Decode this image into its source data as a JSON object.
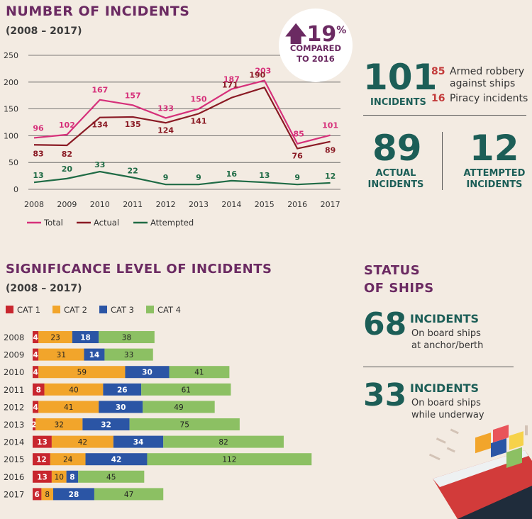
{
  "title1": "NUMBER OF INCIDENTS",
  "sub1": "(2008 – 2017)",
  "badge": {
    "value": "19",
    "unit": "%",
    "line1": "COMPARED",
    "line2": "TO 2016"
  },
  "summary": {
    "total_value": "101",
    "total_label": "INCIDENTS",
    "armed_value": "85",
    "armed_label1": "Armed robbery",
    "armed_label2": "against ships",
    "piracy_value": "16",
    "piracy_label": "Piracy incidents",
    "actual_value": "89",
    "actual_label1": "ACTUAL",
    "actual_label2": "INCIDENTS",
    "attempted_value": "12",
    "attempted_label1": "ATTEMPTED",
    "attempted_label2": "INCIDENTS"
  },
  "title2": "SIGNIFICANCE LEVEL OF INCIDENTS",
  "sub2": "(2008 – 2017)",
  "status": {
    "title1": "STATUS",
    "title2": "OF SHIPS",
    "anchor_value": "68",
    "anchor_label": "INCIDENTS",
    "anchor_desc1": "On board ships",
    "anchor_desc2": "at anchor/berth",
    "underway_value": "33",
    "underway_label": "INCIDENTS",
    "underway_desc1": "On board ships",
    "underway_desc2": "while underway"
  },
  "chart_data": [
    {
      "type": "line",
      "x": [
        "2008",
        "2009",
        "2010",
        "2011",
        "2012",
        "2013",
        "2014",
        "2015",
        "2016",
        "2017"
      ],
      "ylim": [
        0,
        250
      ],
      "yticks": [
        "0",
        "50",
        "100",
        "150",
        "200",
        "250"
      ],
      "grid": true,
      "legend": "bottom",
      "series": [
        {
          "name": "Total",
          "color": "#d6307a",
          "values": [
            96,
            102,
            167,
            157,
            133,
            150,
            187,
            203,
            85,
            101
          ]
        },
        {
          "name": "Actual",
          "color": "#8a1a24",
          "values": [
            83,
            82,
            134,
            135,
            124,
            141,
            171,
            190,
            76,
            89
          ]
        },
        {
          "name": "Attempted",
          "color": "#1f6b45",
          "values": [
            13,
            20,
            33,
            22,
            9,
            9,
            16,
            13,
            9,
            12
          ]
        }
      ]
    },
    {
      "type": "bar",
      "orientation": "horizontal",
      "stacked": true,
      "categories": [
        "2008",
        "2009",
        "2010",
        "2011",
        "2012",
        "2013",
        "2014",
        "2015",
        "2016",
        "2017"
      ],
      "legend": "top-left",
      "series": [
        {
          "name": "CAT 1",
          "color": "#c8262e",
          "values": [
            4,
            4,
            4,
            8,
            4,
            2,
            13,
            12,
            13,
            6
          ]
        },
        {
          "name": "CAT 2",
          "color": "#f2a52b",
          "values": [
            23,
            31,
            59,
            40,
            41,
            32,
            42,
            24,
            10,
            8
          ]
        },
        {
          "name": "CAT 3",
          "color": "#2b55a5",
          "values": [
            18,
            14,
            30,
            26,
            30,
            32,
            34,
            42,
            8,
            28
          ]
        },
        {
          "name": "CAT 4",
          "color": "#8cc063",
          "values": [
            38,
            33,
            41,
            61,
            49,
            75,
            82,
            112,
            45,
            47
          ]
        }
      ]
    }
  ]
}
